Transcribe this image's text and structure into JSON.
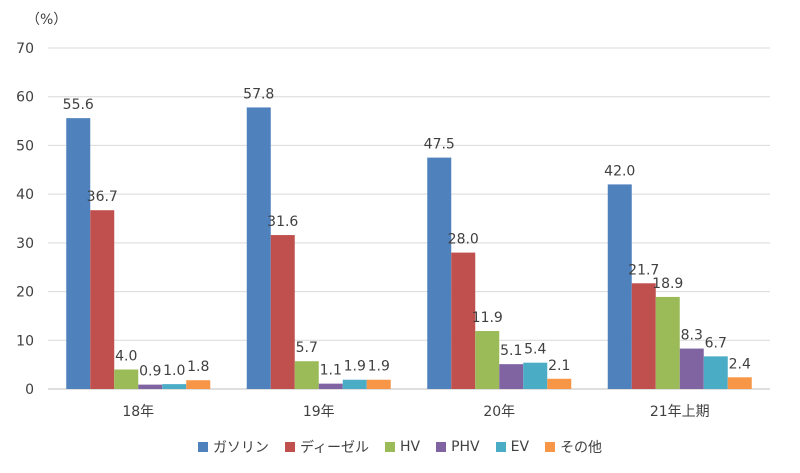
{
  "chart_data": {
    "type": "bar",
    "unit_label": "（%）",
    "categories": [
      "18年",
      "19年",
      "20年",
      "21年上期"
    ],
    "ylim": [
      0,
      70
    ],
    "yticks": [
      0,
      10,
      20,
      30,
      40,
      50,
      60,
      70
    ],
    "grid": true,
    "legend_position": "bottom",
    "series": [
      {
        "name": "ガソリン",
        "color": "#4f81bd",
        "values": [
          55.6,
          57.8,
          47.5,
          42.0
        ]
      },
      {
        "name": "ディーゼル",
        "color": "#c0504d",
        "values": [
          36.7,
          31.6,
          28.0,
          21.7
        ]
      },
      {
        "name": "HV",
        "color": "#9bbb59",
        "values": [
          4.0,
          5.7,
          11.9,
          18.9
        ]
      },
      {
        "name": "PHV",
        "color": "#8064a2",
        "values": [
          0.9,
          1.1,
          5.1,
          8.3
        ]
      },
      {
        "name": "EV",
        "color": "#4bacc6",
        "values": [
          1.0,
          1.9,
          5.4,
          6.7
        ]
      },
      {
        "name": "その他",
        "color": "#f79646",
        "values": [
          1.8,
          1.9,
          2.1,
          2.4
        ]
      }
    ]
  }
}
